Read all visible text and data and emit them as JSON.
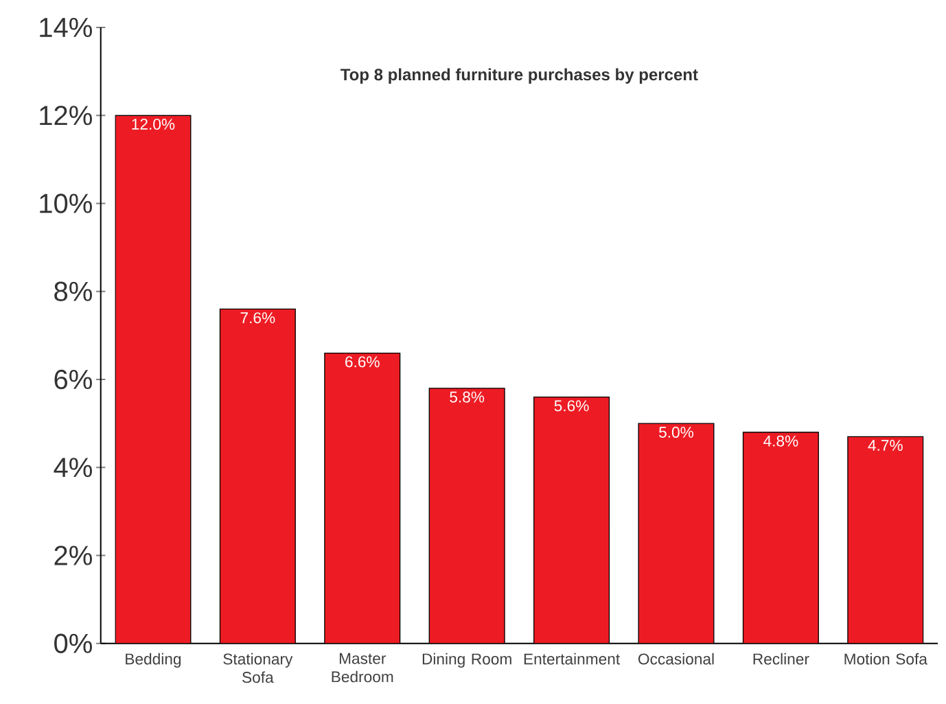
{
  "chart_data": {
    "type": "bar",
    "title": "Top 8 planned furniture purchases by percent",
    "categories": [
      "Bedding",
      "Stationary Sofa",
      "Master Bedroom",
      "Dining Room",
      "Entertainment",
      "Occasional",
      "Recliner",
      "Motion Sofa"
    ],
    "values": [
      12.0,
      7.6,
      6.6,
      5.8,
      5.6,
      5.0,
      4.8,
      4.7
    ],
    "value_labels": [
      "12.0%",
      "7.6%",
      "6.6%",
      "5.8%",
      "5.6%",
      "5.0%",
      "4.8%",
      "4.7%"
    ],
    "color": "#ed1c24",
    "ylim": [
      0,
      14
    ],
    "yticks": [
      {
        "value": 0,
        "label": "0%"
      },
      {
        "value": 2,
        "label": "2%"
      },
      {
        "value": 4,
        "label": "4%"
      },
      {
        "value": 6,
        "label": "6%"
      },
      {
        "value": 8,
        "label": "8%"
      },
      {
        "value": 10,
        "label": "10%"
      },
      {
        "value": 12,
        "label": "12%"
      },
      {
        "value": 14,
        "label": "14%"
      }
    ],
    "grid": false,
    "legend": false
  }
}
